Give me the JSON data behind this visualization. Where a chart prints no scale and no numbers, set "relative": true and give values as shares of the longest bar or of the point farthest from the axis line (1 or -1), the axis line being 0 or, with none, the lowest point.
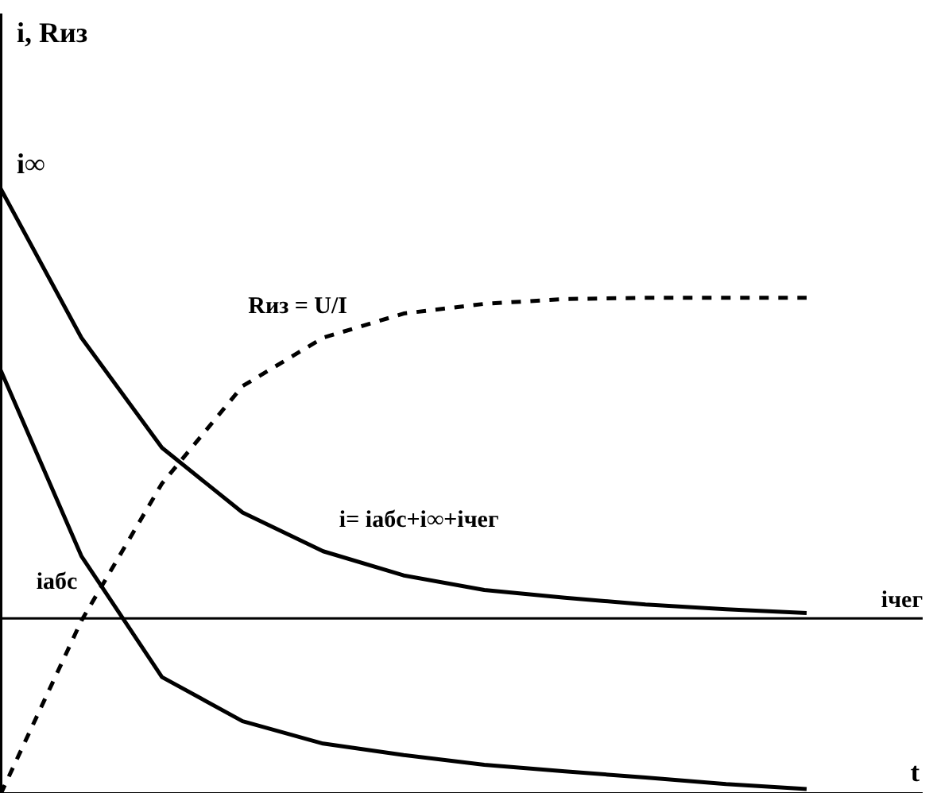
{
  "chart_data": {
    "type": "line",
    "relative": true,
    "xlabel": "t",
    "categories": [
      null,
      null,
      null,
      null,
      null,
      null,
      null,
      null,
      null,
      null,
      null
    ],
    "series": [
      {
        "name": "i= iабс+i∞+iчег",
        "color": "#000000",
        "line_style": "solid",
        "values": [
          1.0,
          0.754,
          0.572,
          0.465,
          0.401,
          0.361,
          0.337,
          0.324,
          0.313,
          0.305,
          0.299
        ]
      },
      {
        "name": "iабс",
        "color": "#000000",
        "line_style": "solid",
        "values": [
          0.7,
          0.393,
          0.193,
          0.12,
          0.083,
          0.064,
          0.048,
          0.037,
          0.027,
          0.016,
          0.008
        ]
      },
      {
        "name": "Rиз = U/I",
        "color": "#000000",
        "line_style": "dashed",
        "values": [
          0.0,
          0.286,
          0.513,
          0.674,
          0.754,
          0.794,
          0.81,
          0.818,
          0.82,
          0.82,
          0.82
        ]
      }
    ],
    "ref_lines": [
      {
        "axis": "y",
        "value": 0.29,
        "label": "iчег",
        "color": "#000000",
        "line_style": "solid"
      }
    ],
    "annotations": [
      "i, Rиз",
      "i∞"
    ],
    "marker": "none"
  }
}
